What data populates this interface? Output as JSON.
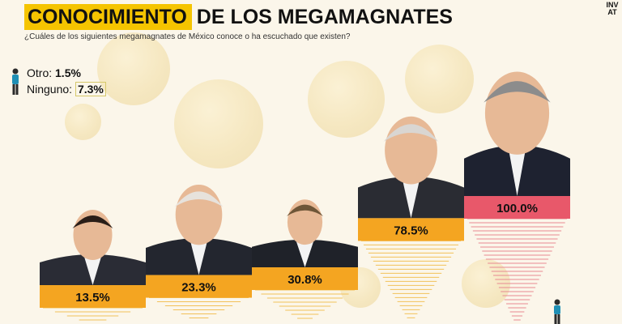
{
  "header": {
    "title_highlight": "CONOCIMIENTO",
    "title_rest": "DE LOS MEGAMAGNATES",
    "subtitle": "¿Cuáles de los siguientes megamagnates de México conoce o ha escuchado que existen?",
    "side_logo": "INVAT"
  },
  "legend": {
    "other_label": "Otro:",
    "other_value": "1.5%",
    "none_label": "Ninguno:",
    "none_value": "7.3%"
  },
  "colors": {
    "accent_yellow": "#f5c400",
    "bar_orange": "#f4a521",
    "bar_top": "#e8586a",
    "background": "#fbf6ea"
  },
  "chart_data": {
    "type": "bar",
    "categories": [
      "",
      "",
      "",
      "",
      ""
    ],
    "values": [
      13.5,
      23.3,
      30.8,
      78.5,
      100.0
    ],
    "value_labels": [
      "13.5%",
      "23.3%",
      "30.8%",
      "78.5%",
      "100.0%"
    ],
    "title": "",
    "xlabel": "",
    "ylabel": "",
    "ylim": [
      0,
      100
    ],
    "grid": false,
    "legend": "none"
  }
}
